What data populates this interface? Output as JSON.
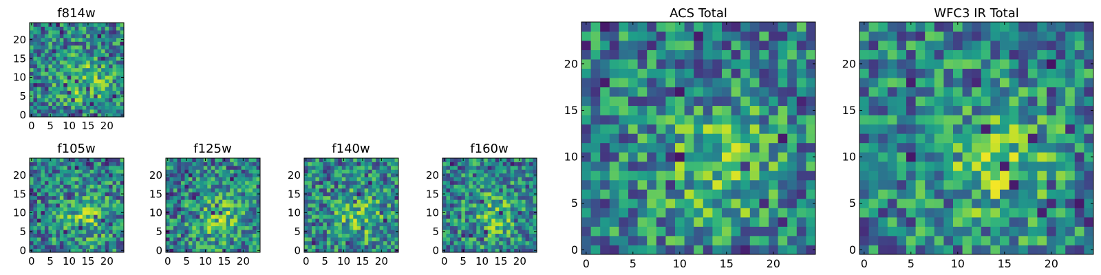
{
  "chart_data": [
    {
      "id": "f814w",
      "type": "heatmap",
      "title": "f814w",
      "grid_size": 25,
      "xlim": [
        -0.5,
        24.5
      ],
      "ylim": [
        -0.5,
        24.5
      ],
      "xticks": [
        0,
        5,
        10,
        15,
        20
      ],
      "yticks": [
        0,
        5,
        10,
        15,
        20
      ],
      "colormap": "viridis",
      "seed": 11,
      "note": "25x25 pixel cutout; per-pixel intensities not legible"
    },
    {
      "id": "f105w",
      "type": "heatmap",
      "title": "f105w",
      "grid_size": 25,
      "xlim": [
        -0.5,
        24.5
      ],
      "ylim": [
        -0.5,
        24.5
      ],
      "xticks": [
        0,
        5,
        10,
        15,
        20
      ],
      "yticks": [
        0,
        5,
        10,
        15,
        20
      ],
      "colormap": "viridis",
      "seed": 23
    },
    {
      "id": "f125w",
      "type": "heatmap",
      "title": "f125w",
      "grid_size": 25,
      "xlim": [
        -0.5,
        24.5
      ],
      "ylim": [
        -0.5,
        24.5
      ],
      "xticks": [
        0,
        5,
        10,
        15,
        20
      ],
      "yticks": [
        0,
        5,
        10,
        15,
        20
      ],
      "colormap": "viridis",
      "seed": 37
    },
    {
      "id": "f140w",
      "type": "heatmap",
      "title": "f140w",
      "grid_size": 25,
      "xlim": [
        -0.5,
        24.5
      ],
      "ylim": [
        -0.5,
        24.5
      ],
      "xticks": [
        0,
        5,
        10,
        15,
        20
      ],
      "yticks": [
        0,
        5,
        10,
        15,
        20
      ],
      "colormap": "viridis",
      "seed": 41
    },
    {
      "id": "f160w",
      "type": "heatmap",
      "title": "f160w",
      "grid_size": 25,
      "xlim": [
        -0.5,
        24.5
      ],
      "ylim": [
        -0.5,
        24.5
      ],
      "xticks": [
        0,
        5,
        10,
        15,
        20
      ],
      "yticks": [
        0,
        5,
        10,
        15,
        20
      ],
      "colormap": "viridis",
      "seed": 53
    },
    {
      "id": "acs_total",
      "type": "heatmap",
      "title": "ACS Total",
      "grid_size": 25,
      "xlim": [
        -0.5,
        24.5
      ],
      "ylim": [
        -0.5,
        24.5
      ],
      "xticks": [
        0,
        5,
        10,
        15,
        20
      ],
      "yticks": [
        0,
        5,
        10,
        15,
        20
      ],
      "colormap": "viridis",
      "seed": 67
    },
    {
      "id": "wfc3_ir_total",
      "type": "heatmap",
      "title": "WFC3 IR Total",
      "grid_size": 25,
      "xlim": [
        -0.5,
        24.5
      ],
      "ylim": [
        -0.5,
        24.5
      ],
      "xticks": [
        0,
        5,
        10,
        15,
        20
      ],
      "yticks": [
        0,
        5,
        10,
        15,
        20
      ],
      "colormap": "viridis",
      "seed": 79
    }
  ]
}
